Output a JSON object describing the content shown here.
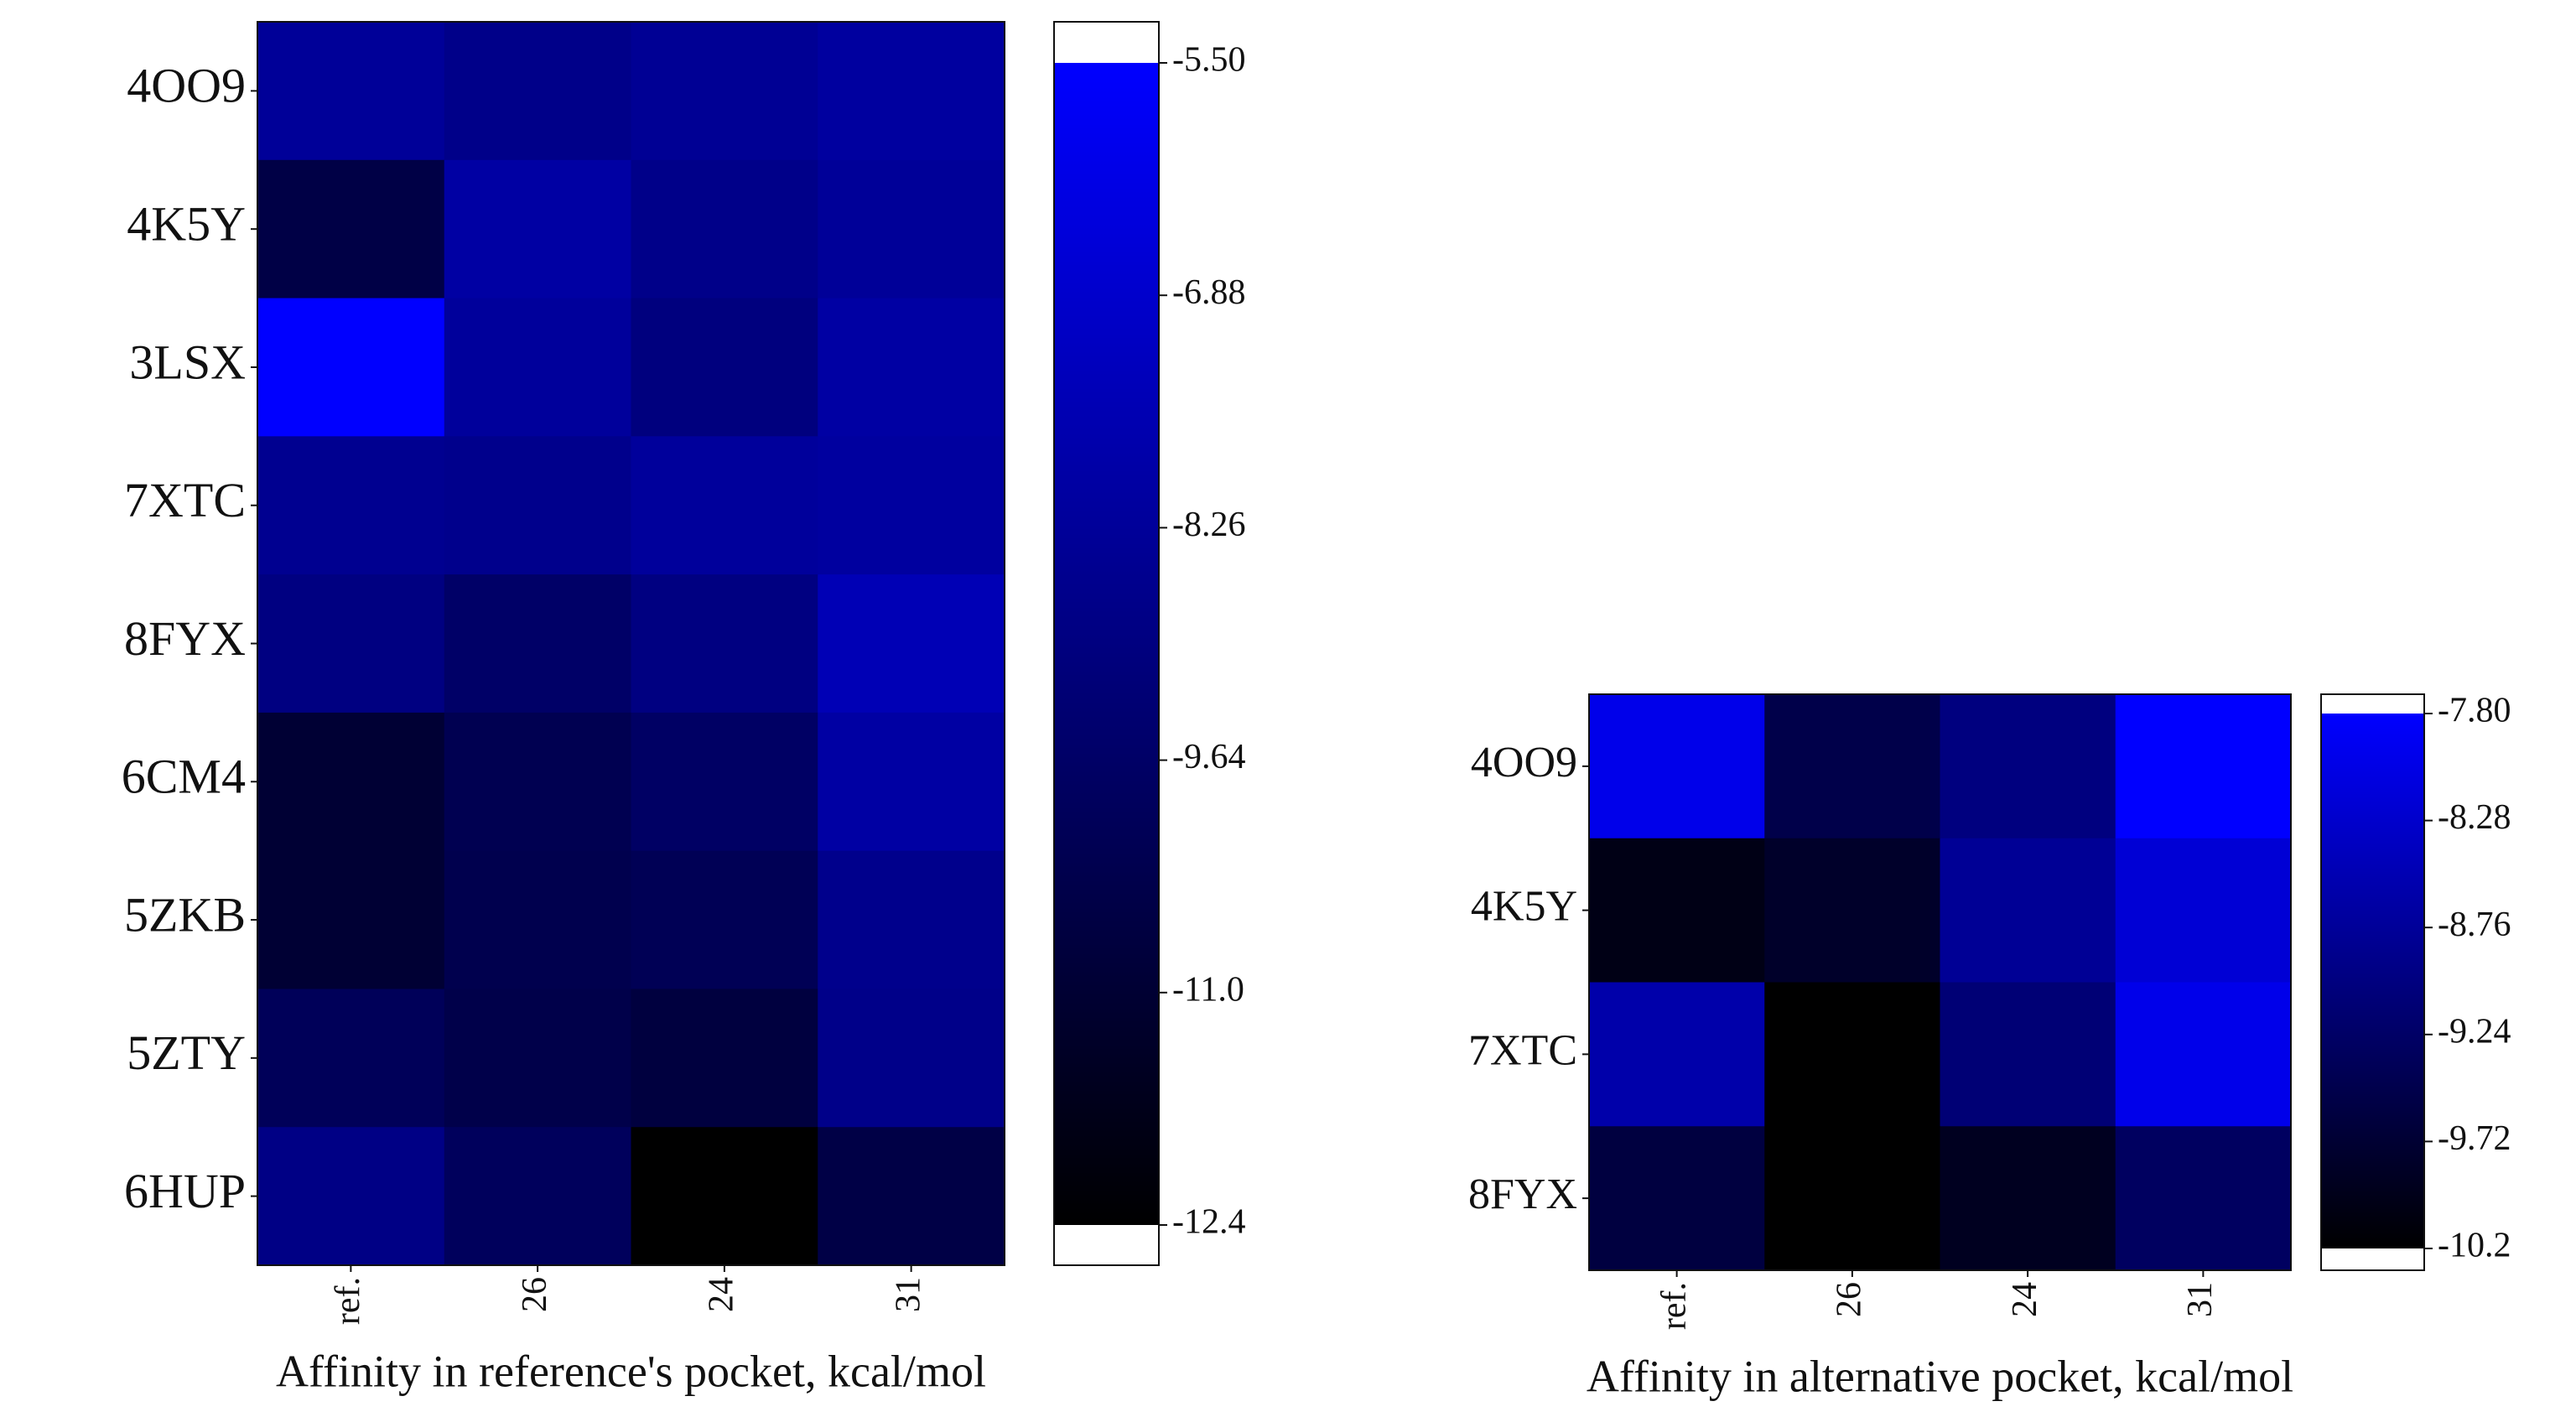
{
  "chart_data": [
    {
      "type": "heatmap",
      "xlabel": "Affinity in reference's pocket, kcal/mol",
      "x_categories": [
        "ref.",
        "26",
        "24",
        "31"
      ],
      "y_categories": [
        "4OO9",
        "4K5Y",
        "3LSX",
        "7XTC",
        "8FYX",
        "6CM4",
        "5ZKB",
        "5ZTY",
        "6HUP"
      ],
      "values": [
        [
          -8.3,
          -8.7,
          -8.4,
          -8.1
        ],
        [
          -10.5,
          -8.0,
          -8.7,
          -8.3
        ],
        [
          -5.5,
          -8.2,
          -9.0,
          -8.0
        ],
        [
          -8.5,
          -8.6,
          -8.2,
          -8.1
        ],
        [
          -8.9,
          -9.6,
          -8.9,
          -7.5
        ],
        [
          -11.0,
          -10.2,
          -9.7,
          -8.0
        ],
        [
          -11.0,
          -10.3,
          -10.1,
          -8.6
        ],
        [
          -10.0,
          -10.4,
          -10.7,
          -8.7
        ],
        [
          -8.8,
          -9.9,
          -12.4,
          -10.5
        ]
      ],
      "zlim": [
        -12.4,
        -5.5
      ],
      "zticks": [
        {
          "value": -5.5,
          "label": "-5.50"
        },
        -6.88,
        -8.26,
        -9.64,
        {
          "value": -11.02,
          "label": "-11.0"
        },
        -12.4
      ],
      "colormap": [
        "#000000",
        "#0000ff"
      ],
      "extend_color": "#ffffff"
    },
    {
      "type": "heatmap",
      "xlabel": "Affinity in alternative pocket, kcal/mol",
      "x_categories": [
        "ref.",
        "26",
        "24",
        "31"
      ],
      "y_categories": [
        "4OO9",
        "4K5Y",
        "7XTC",
        "8FYX"
      ],
      "values": [
        [
          -8.0,
          -9.5,
          -9.0,
          -7.8
        ],
        [
          -10.0,
          -9.8,
          -8.8,
          -8.2
        ],
        [
          -8.6,
          -10.2,
          -9.1,
          -8.0
        ],
        [
          -9.6,
          -10.2,
          -9.9,
          -9.3
        ]
      ],
      "zlim": [
        -10.2,
        -7.8
      ],
      "zticks": [
        {
          "value": -7.8,
          "label": "-7.80"
        },
        -8.28,
        -8.76,
        -9.24,
        -9.72,
        -10.2
      ],
      "colormap": [
        "#000000",
        "#0000ff"
      ],
      "extend_color": "#ffffff"
    }
  ]
}
